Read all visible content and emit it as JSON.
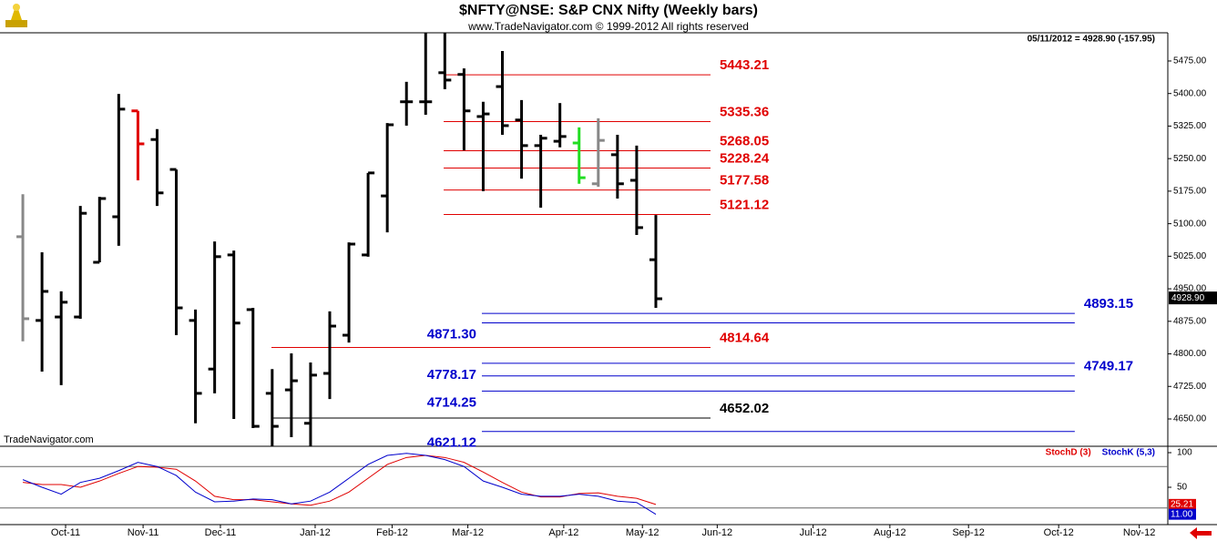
{
  "chart_data": [
    {
      "type": "ohlc",
      "title": "$NFTY@NSE:  S&P CNX Nifty  (Weekly bars)",
      "subtitle": "www.TradeNavigator.com © 1999-2012 All rights reserved",
      "info": "05/11/2012 = 4928.90 (-157.95)",
      "watermark": "TradeNavigator.com",
      "last_price": 4928.9,
      "last_price_label": "4928.90",
      "x": [
        0,
        1,
        2,
        3,
        4,
        5,
        6,
        7,
        8,
        9,
        10,
        11,
        12,
        13,
        14,
        15,
        16,
        17,
        18,
        19,
        20,
        21,
        22,
        23,
        24,
        25,
        26,
        27,
        28,
        29,
        30,
        31,
        32,
        33
      ],
      "open": [
        5070,
        4877,
        4885,
        4885,
        5011,
        5116,
        5360,
        5294,
        5225,
        4877,
        4765,
        5028,
        4902,
        4709,
        4717,
        4640,
        4755,
        4843,
        5028,
        5164,
        5381,
        5381,
        5448,
        5444,
        5347,
        5416,
        5339,
        5280,
        5290,
        5286,
        5192,
        5259,
        5200,
        5017
      ],
      "high": [
        5168,
        5034,
        4944,
        5141,
        5162,
        5399,
        5360,
        5318,
        5225,
        4902,
        5059,
        5038,
        4906,
        4765,
        4801,
        4780,
        4898,
        5057,
        5217,
        5332,
        5427,
        5540,
        5540,
        5458,
        5381,
        5498,
        5385,
        5305,
        5378,
        5322,
        5343,
        5305,
        5280,
        5120
      ],
      "low": [
        4829,
        4759,
        4728,
        4881,
        5011,
        5049,
        5200,
        5141,
        4843,
        4640,
        4709,
        4650,
        4629,
        4587,
        4608,
        4587,
        4696,
        4826,
        5024,
        5080,
        5326,
        5351,
        5410,
        5269,
        5175,
        5305,
        5204,
        5137,
        5276,
        5192,
        5185,
        5158,
        5074,
        4906
      ],
      "close": [
        4881,
        4944,
        4919,
        5124,
        5158,
        5364,
        5284,
        5171,
        4906,
        4709,
        5024,
        4871,
        4633,
        4633,
        4738,
        4751,
        4864,
        5053,
        5217,
        5328,
        5381,
        5381,
        5431,
        5360,
        5353,
        5326,
        5280,
        5297,
        5301,
        5206,
        5292,
        5192,
        5091,
        4927
      ],
      "colors": [
        "#888888",
        "#000000",
        "#000000",
        "#000000",
        "#000000",
        "#000000",
        "#e00000",
        "#000000",
        "#000000",
        "#000000",
        "#000000",
        "#000000",
        "#000000",
        "#000000",
        "#000000",
        "#000000",
        "#000000",
        "#000000",
        "#000000",
        "#000000",
        "#000000",
        "#000000",
        "#000000",
        "#000000",
        "#000000",
        "#000000",
        "#000000",
        "#000000",
        "#000000",
        "#22dd22",
        "#888888",
        "#000000",
        "#000000",
        "#000000"
      ],
      "levels": [
        {
          "value": 5443.21,
          "label": "5443.21",
          "color": "#e00000",
          "start": 21.94,
          "end": 35.85,
          "label_side": "end"
        },
        {
          "value": 5335.36,
          "label": "5335.36",
          "color": "#e00000",
          "start": 21.94,
          "end": 35.85,
          "label_side": "end"
        },
        {
          "value": 5268.05,
          "label": "5268.05",
          "color": "#e00000",
          "start": 21.94,
          "end": 35.85,
          "label_side": "end"
        },
        {
          "value": 5228.24,
          "label": "5228.24",
          "color": "#e00000",
          "start": 21.94,
          "end": 35.85,
          "label_side": "end"
        },
        {
          "value": 5177.58,
          "label": "5177.58",
          "color": "#e00000",
          "start": 21.94,
          "end": 35.85,
          "label_side": "end"
        },
        {
          "value": 5121.12,
          "label": "5121.12",
          "color": "#e00000",
          "start": 21.94,
          "end": 35.85,
          "label_side": "end"
        },
        {
          "value": 4893.15,
          "label": "4893.15",
          "color": "#0000cc",
          "start": 23.93,
          "end": 54.84,
          "label_side": "end"
        },
        {
          "value": 4871.3,
          "label": "4871.30",
          "color": "#0000cc",
          "start": 23.93,
          "end": 54.84,
          "label_side": "start"
        },
        {
          "value": 4814.64,
          "label": "4814.64",
          "color": "#e00000",
          "start": 12.96,
          "end": 35.85,
          "label_side": "end"
        },
        {
          "value": 4778.17,
          "label": "4778.17",
          "color": "#0000cc",
          "start": 23.93,
          "end": 54.84,
          "label_side": "start"
        },
        {
          "value": 4749.17,
          "label": "4749.17",
          "color": "#0000cc",
          "start": 23.93,
          "end": 54.84,
          "label_side": "end"
        },
        {
          "value": 4714.25,
          "label": "4714.25",
          "color": "#0000cc",
          "start": 23.93,
          "end": 54.84,
          "label_side": "start"
        },
        {
          "value": 4652.02,
          "label": "4652.02",
          "color": "#000000",
          "start": 12.96,
          "end": 35.85,
          "label_side": "end"
        },
        {
          "value": 4621.12,
          "label": "4621.12",
          "color": "#0000cc",
          "start": 23.93,
          "end": 54.84,
          "label_side": "start"
        }
      ],
      "xlim": [
        -1.19,
        59.69
      ],
      "xticks": [
        {
          "value": 2.23,
          "label": "Oct-11"
        },
        {
          "value": 6.27,
          "label": "Nov-11"
        },
        {
          "value": 10.3,
          "label": "Dec-11"
        },
        {
          "value": 15.24,
          "label": "Jan-12"
        },
        {
          "value": 19.25,
          "label": "Feb-12"
        },
        {
          "value": 23.2,
          "label": "Mar-12"
        },
        {
          "value": 28.2,
          "label": "Apr-12"
        },
        {
          "value": 32.3,
          "label": "May-12"
        },
        {
          "value": 36.2,
          "label": "Jun-12"
        },
        {
          "value": 41.2,
          "label": "Jul-12"
        },
        {
          "value": 45.2,
          "label": "Aug-12"
        },
        {
          "value": 49.3,
          "label": "Sep-12"
        },
        {
          "value": 54.0,
          "label": "Oct-12"
        },
        {
          "value": 58.2,
          "label": "Nov-12"
        }
      ],
      "ylim": [
        4587,
        5540
      ],
      "yticks": [
        {
          "value": 4650,
          "label": "4650.00"
        },
        {
          "value": 4725,
          "label": "4725.00"
        },
        {
          "value": 4800,
          "label": "4800.00"
        },
        {
          "value": 4875,
          "label": "4875.00"
        },
        {
          "value": 4950,
          "label": "4950.00"
        },
        {
          "value": 5025,
          "label": "5025.00"
        },
        {
          "value": 5100,
          "label": "5100.00"
        },
        {
          "value": 5175,
          "label": "5175.00"
        },
        {
          "value": 5250,
          "label": "5250.00"
        },
        {
          "value": 5325,
          "label": "5325.00"
        },
        {
          "value": 5400,
          "label": "5400.00"
        },
        {
          "value": 5475,
          "label": "5475.00"
        }
      ]
    },
    {
      "type": "line",
      "x": [
        0,
        1,
        2,
        3,
        4,
        5,
        6,
        7,
        8,
        9,
        10,
        11,
        12,
        13,
        14,
        15,
        16,
        17,
        18,
        19,
        20,
        21,
        22,
        23,
        24,
        25,
        26,
        27,
        28,
        29,
        30,
        31,
        32,
        33
      ],
      "series": [
        {
          "name": "StochD (3)",
          "color": "#e00000",
          "last_label": "25.21",
          "values": [
            57,
            54,
            54,
            50,
            59,
            70,
            80,
            79,
            76,
            59,
            37,
            32,
            32,
            29,
            26,
            24,
            30,
            43,
            63,
            83,
            93,
            96,
            93,
            86,
            72,
            57,
            43,
            36,
            36,
            41,
            42,
            37,
            34,
            25.21
          ]
        },
        {
          "name": "StochK (5,3)",
          "color": "#0000cc",
          "last_label": "11.00",
          "values": [
            61,
            50,
            40,
            57,
            63,
            74,
            86,
            80,
            67,
            43,
            29,
            30,
            33,
            32,
            26,
            30,
            43,
            63,
            83,
            96,
            99,
            96,
            90,
            80,
            59,
            50,
            40,
            37,
            37,
            40,
            37,
            30,
            28,
            11
          ]
        }
      ],
      "xlim": [
        -1.19,
        59.69
      ],
      "ylim": [
        0,
        100
      ],
      "yticks": [
        50,
        100
      ],
      "reference_lines": [
        20,
        80
      ]
    }
  ]
}
